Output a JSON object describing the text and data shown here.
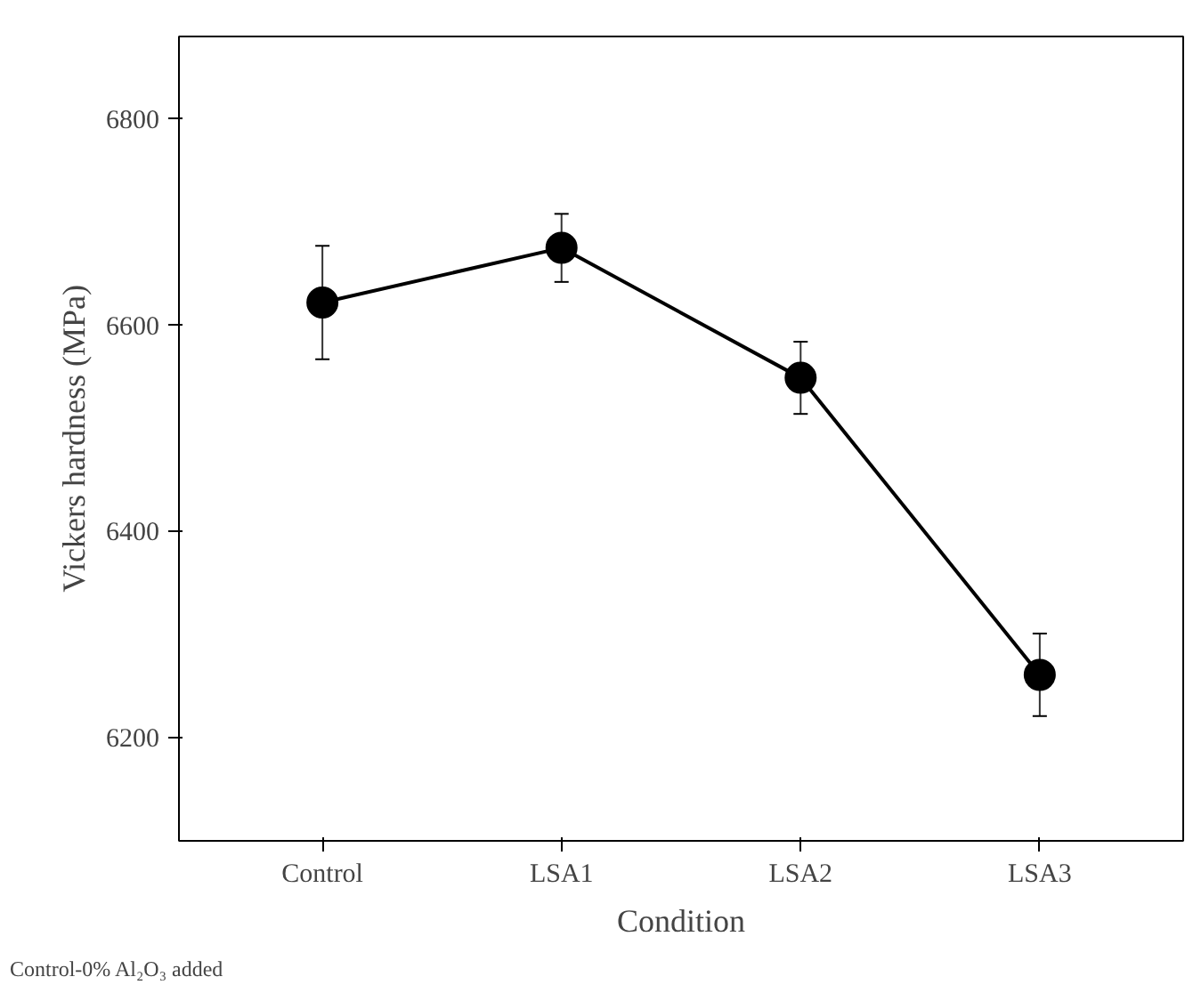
{
  "chart_data": {
    "type": "line",
    "xlabel": "Condition",
    "ylabel": "Vickers hardness (MPa)",
    "categories": [
      "Control",
      "LSA1",
      "LSA2",
      "LSA3"
    ],
    "series": [
      {
        "color": "#000000",
        "values": [
          6622,
          6675,
          6549,
          6261
        ],
        "errors": [
          55,
          33,
          35,
          40
        ]
      }
    ],
    "ylim": [
      6100,
      6880
    ],
    "yticks": [
      6200,
      6400,
      6600,
      6800
    ],
    "marker": "circle",
    "line_style": "solid",
    "grid": false,
    "annotations": [
      "Control-0% Al₂O₃ added"
    ]
  }
}
